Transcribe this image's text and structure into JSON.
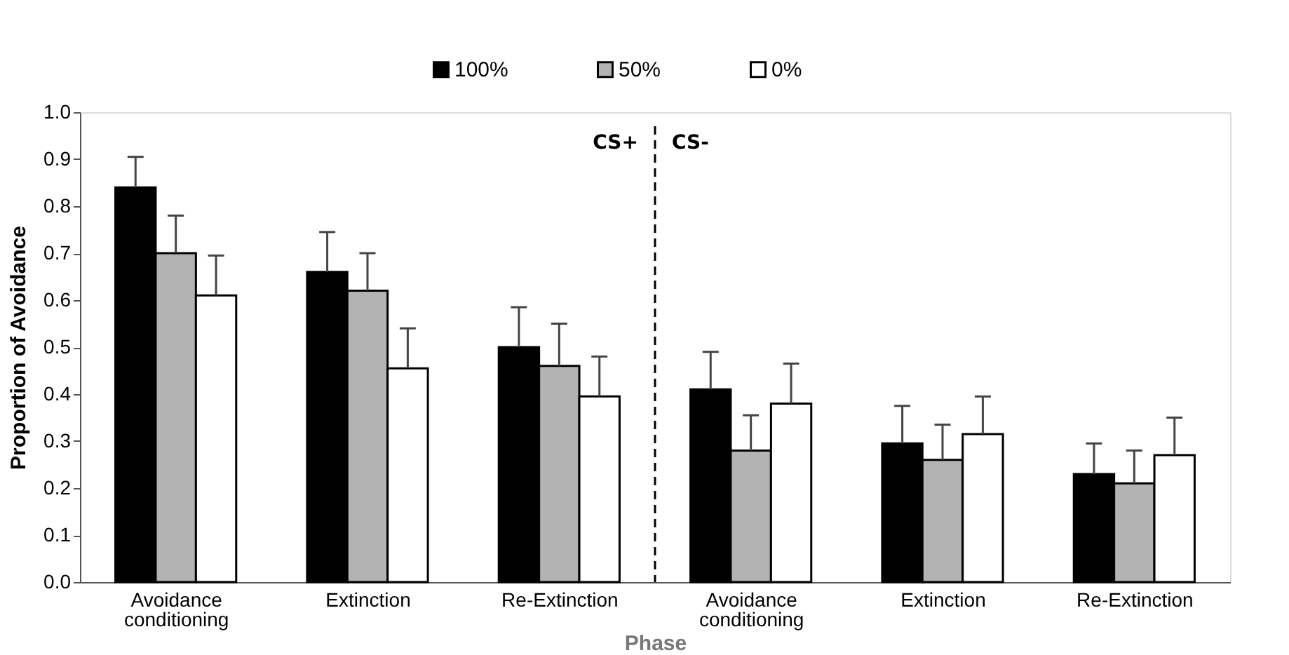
{
  "chart_data": {
    "type": "bar",
    "xlabel": "Phase",
    "ylabel": "Proportion of Avoidance",
    "categories": [
      "Avoidance conditioning",
      "Extinction",
      "Re-Extinction",
      "Avoidance conditioning",
      "Extinction",
      "Re-Extinction"
    ],
    "series": [
      {
        "name": "100%",
        "color": "#000000",
        "values": [
          0.84,
          0.66,
          0.5,
          0.41,
          0.295,
          0.23
        ],
        "errors": [
          [
            0.84,
            0.905
          ],
          [
            0.66,
            0.745
          ],
          [
            0.5,
            0.585
          ],
          [
            0.41,
            0.49
          ],
          [
            0.295,
            0.375
          ],
          [
            0.23,
            0.295
          ]
        ]
      },
      {
        "name": "50%",
        "color": "#b3b3b3",
        "values": [
          0.7,
          0.62,
          0.46,
          0.28,
          0.26,
          0.21
        ],
        "errors": [
          [
            0.7,
            0.78
          ],
          [
            0.62,
            0.7
          ],
          [
            0.46,
            0.55
          ],
          [
            0.28,
            0.355
          ],
          [
            0.26,
            0.335
          ],
          [
            0.21,
            0.28
          ]
        ]
      },
      {
        "name": "0%",
        "color": "#ffffff",
        "values": [
          0.61,
          0.455,
          0.395,
          0.38,
          0.315,
          0.27
        ],
        "errors": [
          [
            0.61,
            0.695
          ],
          [
            0.455,
            0.54
          ],
          [
            0.395,
            0.48
          ],
          [
            0.38,
            0.465
          ],
          [
            0.315,
            0.395
          ],
          [
            0.27,
            0.35
          ]
        ]
      }
    ],
    "ylim": [
      0,
      1.0
    ],
    "yticks": [
      {
        "value": 0,
        "label": "0.0"
      },
      0.1,
      0.2,
      0.3,
      0.4,
      0.5,
      0.6,
      0.7,
      0.8,
      0.9,
      {
        "value": 1.0,
        "label": "1.0"
      }
    ],
    "annotations": [
      "CS+",
      "CS-"
    ],
    "legend": "top",
    "grid": false
  }
}
